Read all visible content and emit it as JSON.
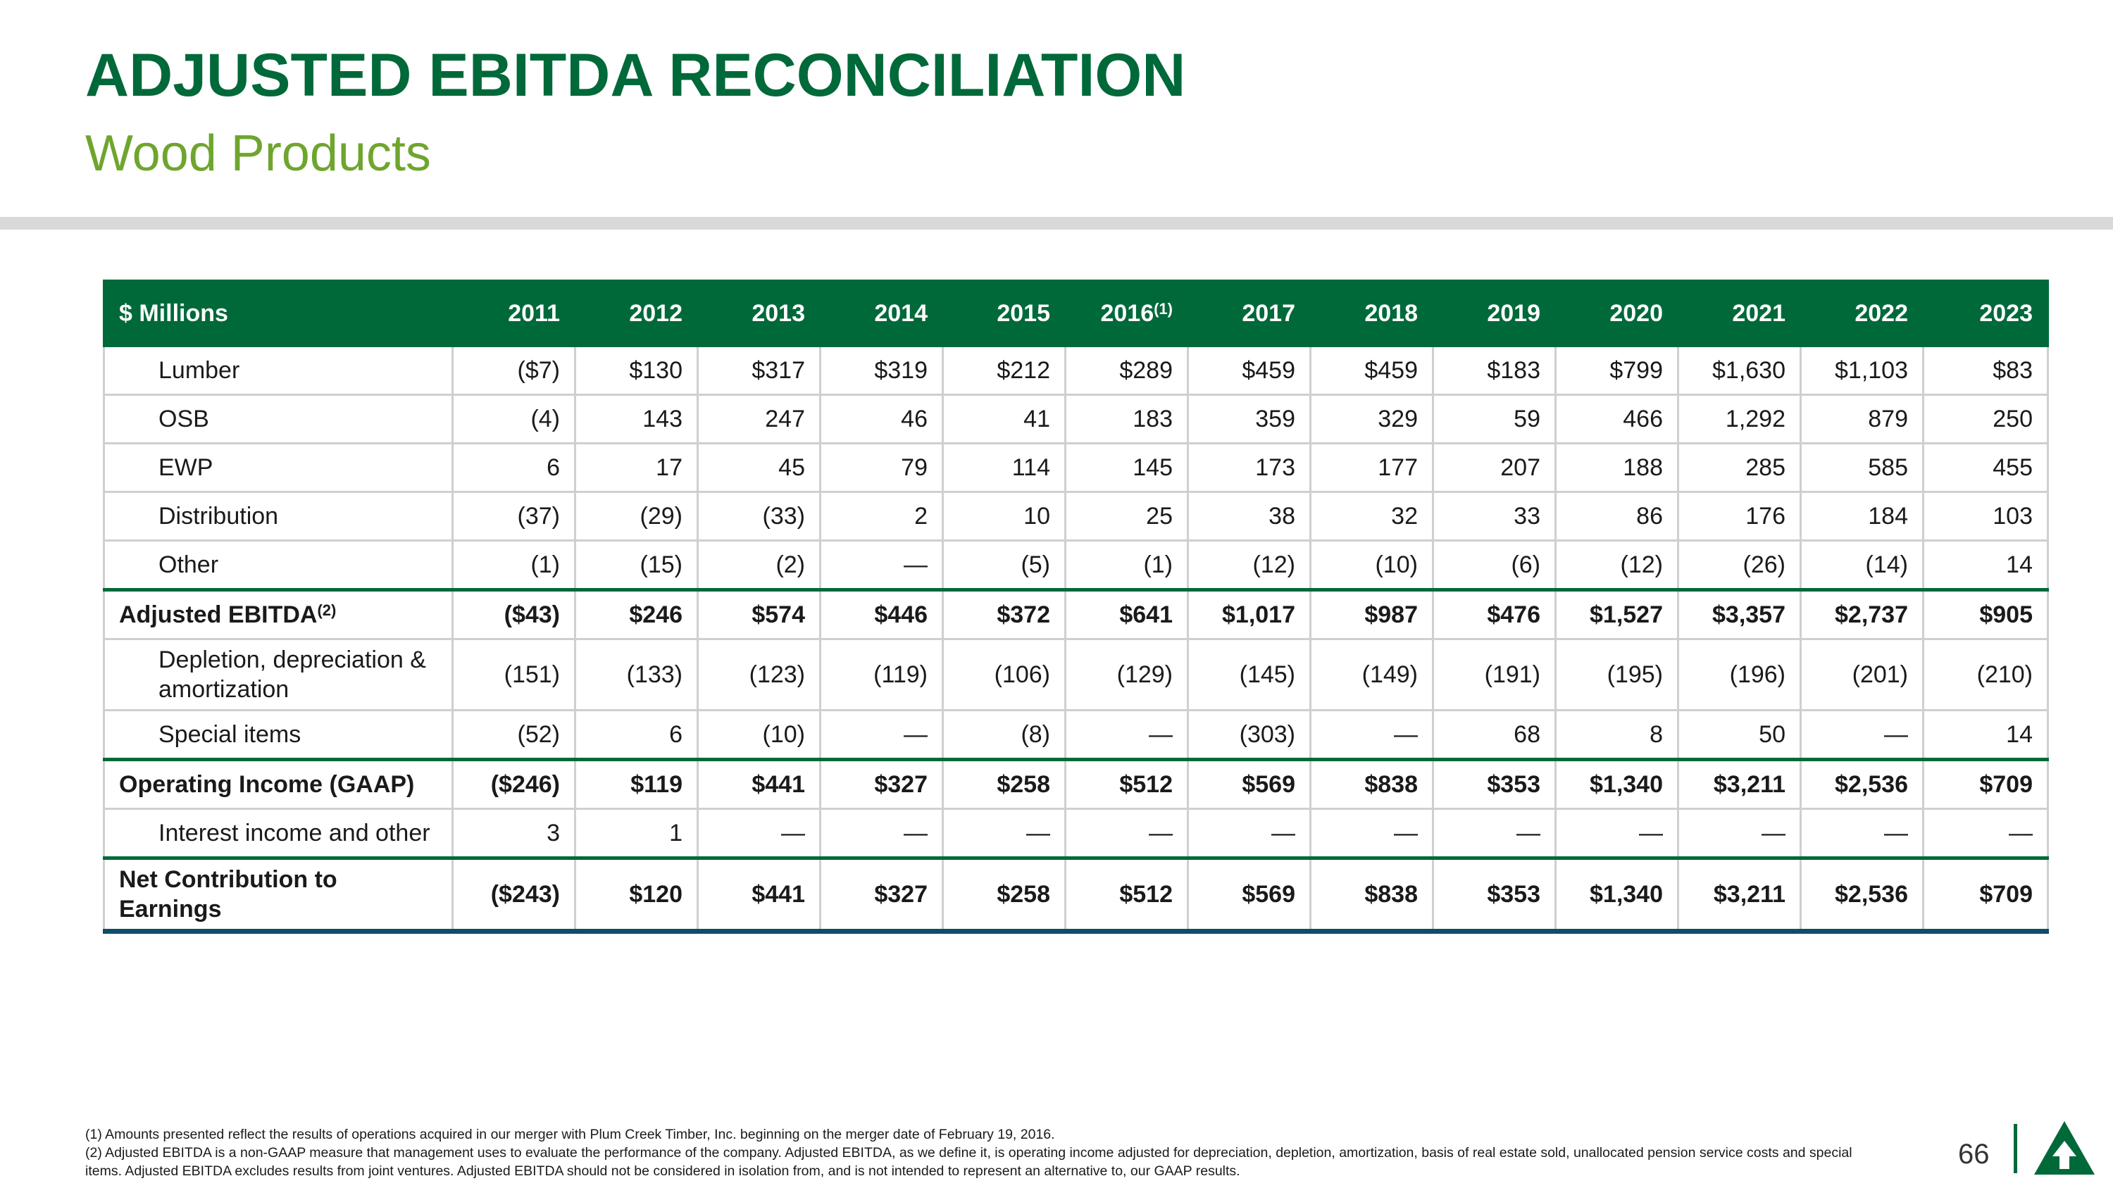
{
  "header": {
    "title": "ADJUSTED EBITDA RECONCILIATION",
    "subtitle": "Wood Products"
  },
  "table": {
    "corner_label": "$ Millions",
    "columns": [
      "2011",
      "2012",
      "2013",
      "2014",
      "2015",
      "2016",
      "2017",
      "2018",
      "2019",
      "2020",
      "2021",
      "2022",
      "2023"
    ],
    "column_2016_note": "(1)",
    "rows": [
      {
        "label": "Lumber",
        "values": [
          "($7)",
          "$130",
          "$317",
          "$319",
          "$212",
          "$289",
          "$459",
          "$459",
          "$183",
          "$799",
          "$1,630",
          "$1,103",
          "$83"
        ]
      },
      {
        "label": "OSB",
        "values": [
          "(4)",
          "143",
          "247",
          "46",
          "41",
          "183",
          "359",
          "329",
          "59",
          "466",
          "1,292",
          "879",
          "250"
        ]
      },
      {
        "label": "EWP",
        "values": [
          "6",
          "17",
          "45",
          "79",
          "114",
          "145",
          "173",
          "177",
          "207",
          "188",
          "285",
          "585",
          "455"
        ]
      },
      {
        "label": "Distribution",
        "values": [
          "(37)",
          "(29)",
          "(33)",
          "2",
          "10",
          "25",
          "38",
          "32",
          "33",
          "86",
          "176",
          "184",
          "103"
        ]
      },
      {
        "label": "Other",
        "values": [
          "(1)",
          "(15)",
          "(2)",
          "—",
          "(5)",
          "(1)",
          "(12)",
          "(10)",
          "(6)",
          "(12)",
          "(26)",
          "(14)",
          "14"
        ]
      },
      {
        "label": "Adjusted EBITDA",
        "note": "(2)",
        "values": [
          "($43)",
          "$246",
          "$574",
          "$446",
          "$372",
          "$641",
          "$1,017",
          "$987",
          "$476",
          "$1,527",
          "$3,357",
          "$2,737",
          "$905"
        ]
      },
      {
        "label": "Depletion, depreciation & amortization",
        "values": [
          "(151)",
          "(133)",
          "(123)",
          "(119)",
          "(106)",
          "(129)",
          "(145)",
          "(149)",
          "(191)",
          "(195)",
          "(196)",
          "(201)",
          "(210)"
        ]
      },
      {
        "label": "Special items",
        "values": [
          "(52)",
          "6",
          "(10)",
          "—",
          "(8)",
          "—",
          "(303)",
          "—",
          "68",
          "8",
          "50",
          "—",
          "14"
        ]
      },
      {
        "label": "Operating Income (GAAP)",
        "values": [
          "($246)",
          "$119",
          "$441",
          "$327",
          "$258",
          "$512",
          "$569",
          "$838",
          "$353",
          "$1,340",
          "$3,211",
          "$2,536",
          "$709"
        ]
      },
      {
        "label": "Interest income and other",
        "values": [
          "3",
          "1",
          "—",
          "—",
          "—",
          "—",
          "—",
          "—",
          "—",
          "—",
          "—",
          "—",
          "—"
        ]
      },
      {
        "label": "Net Contribution to Earnings",
        "values": [
          "($243)",
          "$120",
          "$441",
          "$327",
          "$258",
          "$512",
          "$569",
          "$838",
          "$353",
          "$1,340",
          "$3,211",
          "$2,536",
          "$709"
        ]
      }
    ]
  },
  "footnotes": [
    "(1) Amounts presented reflect the results of operations acquired in our merger with Plum Creek Timber, Inc. beginning on the merger date of February 19, 2016.",
    "(2) Adjusted EBITDA is a non-GAAP measure that management uses to evaluate the performance of the company. Adjusted EBITDA, as we define it, is operating income adjusted for depreciation, depletion, amortization, basis of real estate sold, unallocated pension service costs and special items. Adjusted EBITDA excludes results from joint ventures. Adjusted EBITDA should not be considered in isolation from, and is not intended to represent an alternative to, our GAAP results."
  ],
  "page_number": "66",
  "colors": {
    "brand_green": "#00693a",
    "subtitle_green": "#6fa52e",
    "rule_gray": "#d9d9d9",
    "bottom_rule": "#0e4d6b"
  },
  "logo_icon": "tree-arrow-logo-icon"
}
